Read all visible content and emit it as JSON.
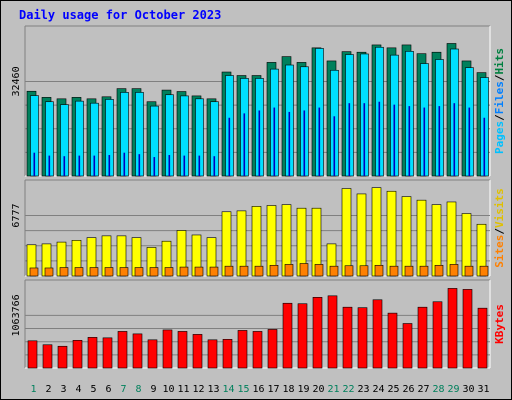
{
  "chart_data": {
    "type": "bar",
    "title": "Daily usage for October 2023",
    "categories": [
      "1",
      "2",
      "3",
      "4",
      "5",
      "6",
      "7",
      "8",
      "9",
      "10",
      "11",
      "12",
      "13",
      "14",
      "15",
      "16",
      "17",
      "18",
      "19",
      "20",
      "21",
      "22",
      "23",
      "24",
      "25",
      "26",
      "27",
      "28",
      "29",
      "30",
      "31"
    ],
    "weekend_days": [
      1,
      7,
      8,
      14,
      15,
      21,
      22,
      28,
      29
    ],
    "panels": [
      {
        "id": "hits",
        "ytick": "32460",
        "ytick_value": 32460,
        "ymax": 51500,
        "legend": [
          {
            "label": "Hits",
            "color": "#008040"
          },
          {
            "label": "/",
            "color": "#000000"
          },
          {
            "label": "Files",
            "color": "#0080FF"
          },
          {
            "label": "/",
            "color": "#000000"
          },
          {
            "label": "Pages",
            "color": "#00C0FF"
          }
        ],
        "series": [
          {
            "name": "Hits",
            "color": "#00805C",
            "values": [
              29100,
              27000,
              26500,
              27000,
              26500,
              27200,
              30000,
              30000,
              25500,
              29500,
              29000,
              27500,
              26500,
              35700,
              34500,
              34500,
              39000,
              41000,
              39000,
              44000,
              39500,
              42700,
              42500,
              45000,
              44000,
              45000,
              42000,
              42500,
              45500,
              39500,
              35500
            ]
          },
          {
            "name": "Files",
            "color": "#00E0FF",
            "values": [
              27600,
              25500,
              24500,
              25700,
              25000,
              26300,
              28700,
              28700,
              24000,
              27900,
              27500,
              26500,
              25500,
              34500,
              33500,
              33500,
              36700,
              38100,
              37500,
              43800,
              36300,
              41700,
              41900,
              44200,
              41500,
              42800,
              38600,
              40000,
              43600,
              37200,
              33800
            ]
          },
          {
            "name": "Pages",
            "color": "#0000C0",
            "values": [
              8000,
              7000,
              6800,
              7000,
              7000,
              7200,
              8000,
              7500,
              6500,
              7200,
              7000,
              7000,
              6800,
              20000,
              21500,
              22500,
              23500,
              22000,
              22500,
              23500,
              20500,
              25000,
              25000,
              25500,
              24500,
              24000,
              23500,
              24000,
              25000,
              23500,
              20000
            ]
          }
        ]
      },
      {
        "id": "visits",
        "ytick": "6777",
        "ytick_value": 6777,
        "ymax": 10760,
        "legend": [
          {
            "label": "Visits",
            "color": "#E0C000"
          },
          {
            "label": "/",
            "color": "#000000"
          },
          {
            "label": "Sites",
            "color": "#FF8000"
          }
        ],
        "series": [
          {
            "name": "Visits",
            "color": "#FFFF00",
            "values": [
              3500,
              3600,
              3800,
              4000,
              4300,
              4500,
              4500,
              4300,
              3200,
              3900,
              5100,
              4600,
              4300,
              7200,
              7300,
              7800,
              7900,
              8000,
              7600,
              7600,
              3600,
              9800,
              9200,
              9900,
              9500,
              8900,
              8500,
              8000,
              8300,
              7000,
              5800
            ]
          },
          {
            "name": "Sites",
            "color": "#FF8000",
            "values": [
              900,
              900,
              950,
              950,
              950,
              950,
              950,
              950,
              950,
              950,
              1000,
              1000,
              1000,
              1100,
              1100,
              1100,
              1200,
              1300,
              1400,
              1300,
              1100,
              1150,
              1150,
              1200,
              1100,
              1100,
              1100,
              1200,
              1300,
              1100,
              1100
            ]
          }
        ]
      },
      {
        "id": "kbytes",
        "ytick": "1063766",
        "ytick_value": 1063766,
        "ymax": 1780000,
        "legend": [
          {
            "label": "KBytes",
            "color": "#FF0000"
          }
        ],
        "series": [
          {
            "name": "KBytes",
            "color": "#FF0000",
            "values": [
              550000,
              470000,
              440000,
              560000,
              620000,
              610000,
              740000,
              690000,
              570000,
              770000,
              740000,
              680000,
              570000,
              580000,
              760000,
              740000,
              780000,
              1310000,
              1300000,
              1430000,
              1460000,
              1230000,
              1220000,
              1380000,
              1110000,
              900000,
              1230000,
              1340000,
              1610000,
              1590000,
              1210000
            ]
          }
        ]
      }
    ]
  }
}
